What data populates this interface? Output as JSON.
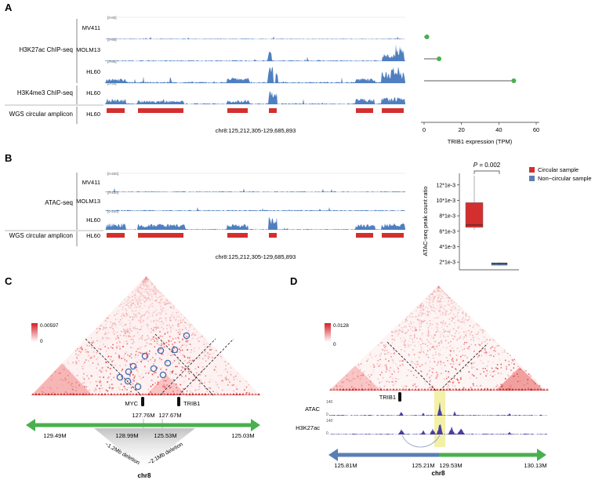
{
  "panels": {
    "a": "A",
    "b": "B",
    "c": "C",
    "d": "D"
  },
  "panel_a": {
    "groups": [
      "H3K27ac ChIP-seq",
      "H3K4me3 ChIP-seq",
      "WGS circular amplicon"
    ],
    "tracks": [
      {
        "sample": "MV411",
        "range": "[0-80]"
      },
      {
        "sample": "MOLM13",
        "range": "[0-80]"
      },
      {
        "sample": "HL60",
        "range": "[0-80]"
      },
      {
        "sample": "HL60",
        "range": "[0-40]"
      }
    ],
    "amplicon_sample": "HL60",
    "coord": "chr8:125,212,305-129,685,893"
  },
  "panel_b": {
    "groups": [
      "ATAC-seq",
      "WGS circular amplicon"
    ],
    "tracks": [
      {
        "sample": "MV411",
        "range": "[0-200]"
      },
      {
        "sample": "MOLM13",
        "range": "[0-200]"
      },
      {
        "sample": "HL60",
        "range": "[0-200]"
      }
    ],
    "amplicon_sample": "HL60",
    "coord": "chr8:125,212,305-129,685,893",
    "legend": [
      {
        "label": "Circular sample",
        "color": "#d32f2f"
      },
      {
        "label": "Non−circular sample",
        "color": "#5b7fb4"
      }
    ]
  },
  "chart_data": [
    {
      "type": "dot",
      "categories": [
        "MV411",
        "MOLM13",
        "HL60"
      ],
      "values": [
        1.5,
        8,
        48
      ],
      "xlabel": "TRIB1 expression (TPM)",
      "xticks": [
        0,
        20,
        40,
        60
      ],
      "xlim": [
        0,
        60
      ]
    },
    {
      "type": "box",
      "ylabel": "ATAC-seq peak count ratio",
      "yticks": [
        "2*1e-3",
        "4*1e-3",
        "6*1e-3",
        "8*1e-3",
        "10*1e-3",
        "12*1e-3"
      ],
      "ylim": [
        0.001,
        0.0135
      ],
      "p_prefix": "P",
      "p_value": " = 0.002",
      "series": [
        {
          "name": "Circular sample",
          "min": 0.0062,
          "q1": 0.0065,
          "median": 0.0068,
          "q3": 0.0097,
          "max": 0.0132
        },
        {
          "name": "Non−circular sample",
          "min": 0.0015,
          "q1": 0.0016,
          "median": 0.0018,
          "q3": 0.0019,
          "max": 0.002
        }
      ]
    }
  ],
  "panel_c": {
    "scale_max": "0.00597",
    "scale_min": "0",
    "genes": [
      "MYC",
      "TRIB1"
    ],
    "coords_top": [
      "127.76M",
      "127.67M"
    ],
    "axis_ticks": [
      "129.49M",
      "128.99M",
      "125.53M",
      "125.03M"
    ],
    "deletions": [
      "~1.2Mb deletion",
      "~2.1Mb deletion"
    ],
    "chrom": "chr8"
  },
  "panel_d": {
    "scale_max": "0.0128",
    "scale_min": "0",
    "gene": "TRIB1",
    "tracks": [
      {
        "name": "ATAC",
        "range_top": "140",
        "range_bottom": "0"
      },
      {
        "name": "H3K27ac",
        "range_top": "140",
        "range_bottom": "0"
      }
    ],
    "axis_ticks": [
      "125.81M",
      "125.21M",
      "129.53M",
      "130.13M"
    ],
    "chrom": "chr8"
  },
  "colors": {
    "track_blue": "#4f7fc0",
    "amplicon_red": "#d32f2f",
    "green": "#49b04e",
    "purple": "#4b3d9e",
    "highlight": "#f3f0a8",
    "axis_blue": "#5b7fb4"
  }
}
